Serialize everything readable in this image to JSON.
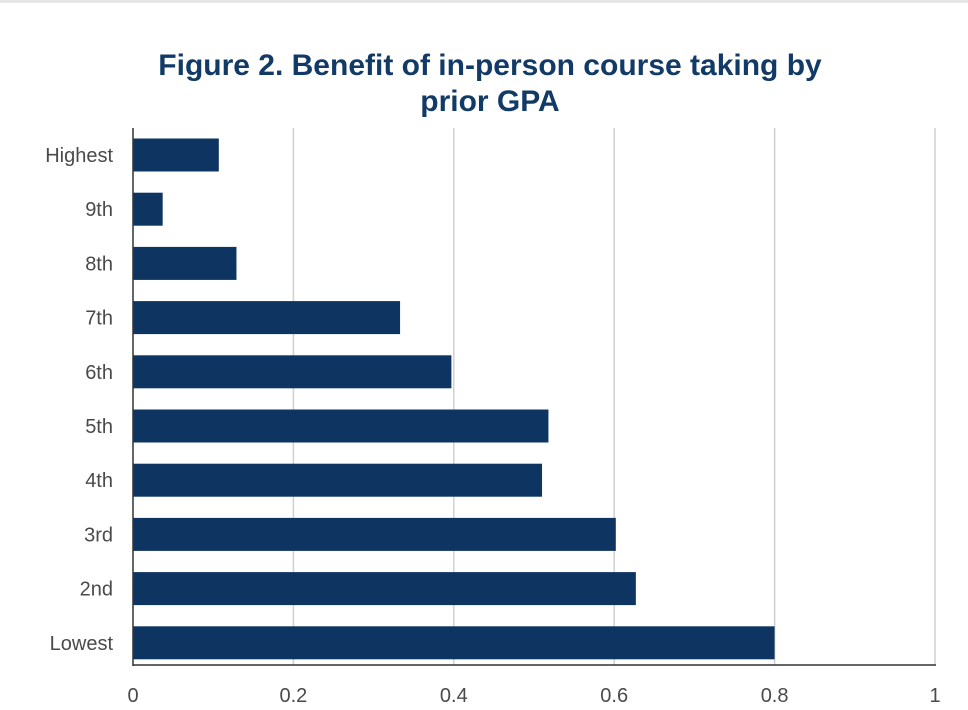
{
  "chart_data": {
    "type": "bar",
    "orientation": "horizontal",
    "title_lines": [
      "Figure 2. Benefit of in-person course taking by",
      "prior GPA"
    ],
    "xlabel": "",
    "ylabel": "",
    "categories": [
      "Highest",
      "9th",
      "8th",
      "7th",
      "6th",
      "5th",
      "4th",
      "3rd",
      "2nd",
      "Lowest"
    ],
    "values": [
      0.107,
      0.037,
      0.129,
      0.333,
      0.397,
      0.518,
      0.51,
      0.602,
      0.627,
      0.8
    ],
    "xlim": [
      0,
      1
    ],
    "xticks": [
      "0",
      "0.2",
      "0.4",
      "0.6",
      "0.8",
      "1"
    ],
    "grid": "vertical",
    "legend": "none",
    "colors": {
      "bar": "#0e3562",
      "title": "#123a66",
      "grid": "#d0d0d0",
      "axis": "#333333",
      "tick_text": "#4a4a4a"
    }
  }
}
